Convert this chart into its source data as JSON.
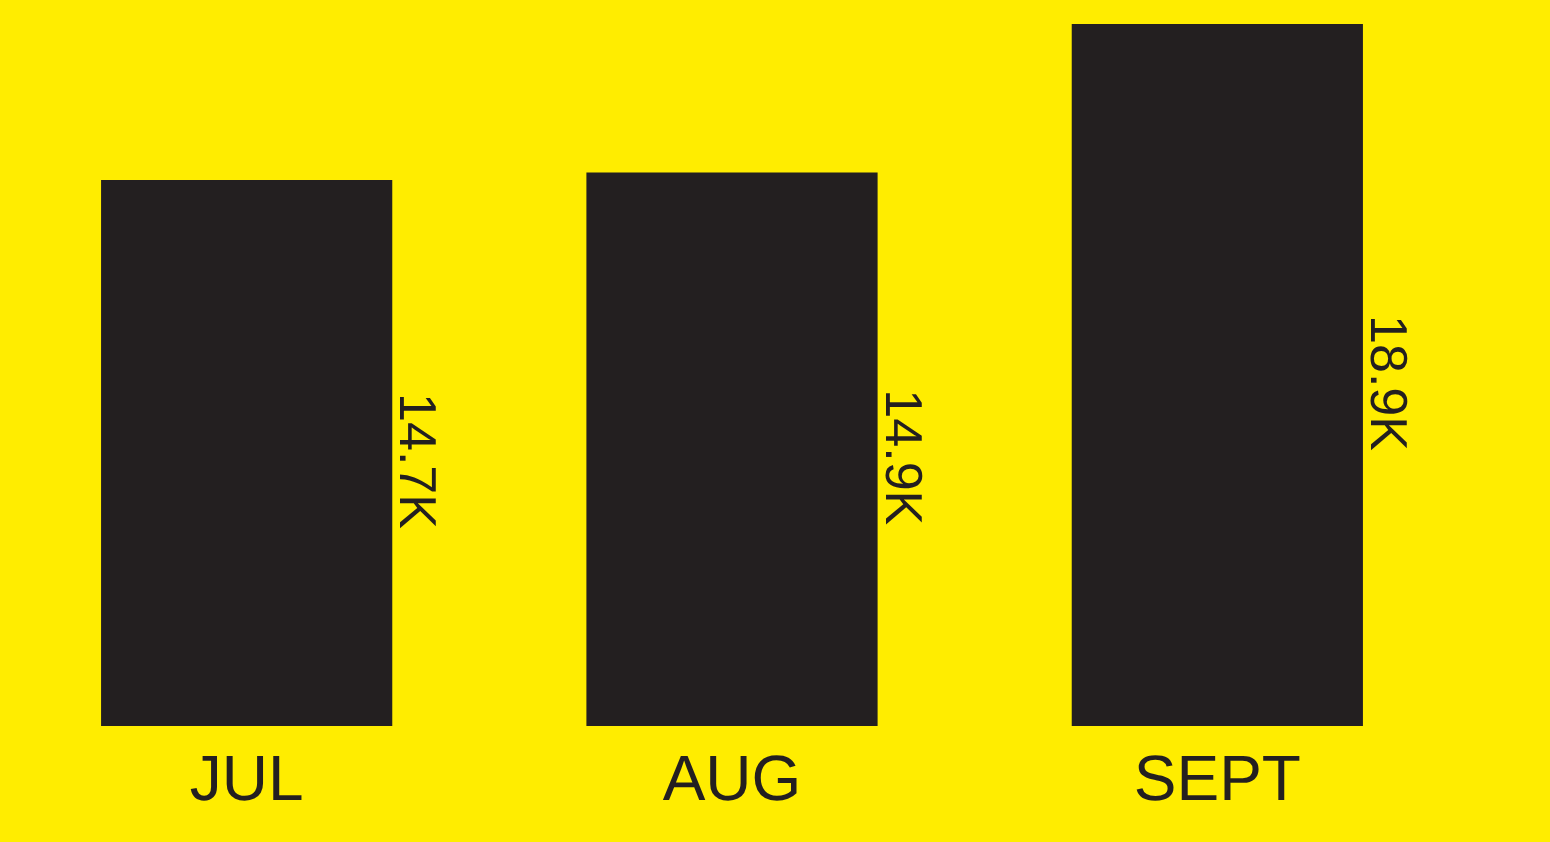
{
  "chart_data": {
    "type": "bar",
    "categories": [
      "JUL",
      "AUG",
      "SEPT"
    ],
    "values": [
      14700,
      14900,
      18900
    ],
    "value_labels": [
      "14.7K",
      "14.9K",
      "18.9K"
    ],
    "color": "#231f20"
  }
}
